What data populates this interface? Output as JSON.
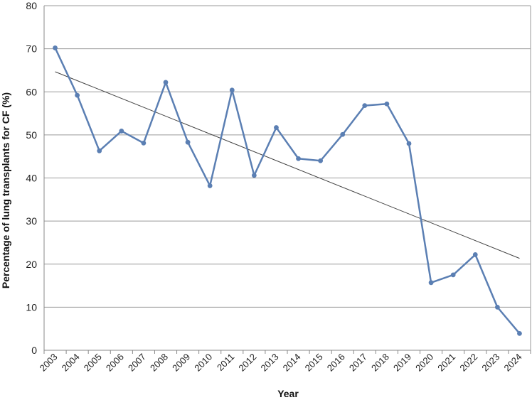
{
  "chart_data": {
    "type": "line",
    "title": "",
    "xlabel": "Year",
    "ylabel": "Percentage of lung transplants for CF (%)",
    "ylim": [
      0,
      80
    ],
    "yticks": [
      0,
      10,
      20,
      30,
      40,
      50,
      60,
      70,
      80
    ],
    "grid": true,
    "categories": [
      "2003",
      "2004",
      "2005",
      "2006",
      "2007",
      "2008",
      "2009",
      "2010",
      "2011",
      "2012",
      "2013",
      "2014",
      "2015",
      "2016",
      "2017",
      "2018",
      "2019",
      "2020",
      "2021",
      "2022",
      "2023",
      "2024"
    ],
    "series": [
      {
        "values": [
          70.2,
          59.2,
          46.3,
          50.9,
          48.1,
          62.2,
          48.3,
          38.2,
          60.4,
          40.6,
          51.7,
          44.5,
          44.0,
          50.1,
          56.8,
          57.2,
          48.0,
          15.7,
          17.5,
          22.2,
          10.0,
          3.9
        ],
        "color": "#5b7fb3"
      }
    ],
    "trendline": {
      "type": "linear",
      "color": "#444444"
    }
  }
}
